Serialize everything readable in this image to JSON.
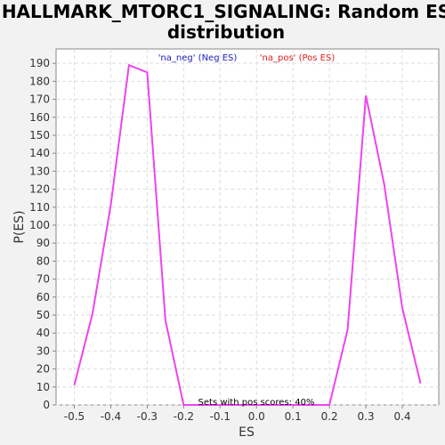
{
  "chart_data": {
    "type": "line",
    "title_line1": "HALLMARK_MTORC1_SIGNALING: Random ES",
    "title_line2": "distribution",
    "xlabel": "ES",
    "ylabel": "P(ES)",
    "xlim": [
      -0.55,
      0.5
    ],
    "ylim": [
      0,
      198
    ],
    "x_ticks": [
      -0.5,
      -0.4,
      -0.3,
      -0.2,
      -0.1,
      0.0,
      0.1,
      0.2,
      0.3,
      0.4
    ],
    "x_tick_labels": [
      "-0.5",
      "-0.4",
      "-0.3",
      "-0.2",
      "-0.1",
      "0.0",
      "0.1",
      "0.2",
      "0.3",
      "0.4"
    ],
    "y_ticks": [
      0,
      10,
      20,
      30,
      40,
      50,
      60,
      70,
      80,
      90,
      100,
      110,
      120,
      130,
      140,
      150,
      160,
      170,
      180,
      190
    ],
    "grid": true,
    "legend": [
      {
        "label": "'na_neg' (Neg ES)",
        "color": "#2020c0"
      },
      {
        "label": "'na_pos' (Pos ES)",
        "color": "#e02020"
      }
    ],
    "series": [
      {
        "color": "#ee44ee",
        "x": [
          -0.5,
          -0.45,
          -0.4,
          -0.35,
          -0.3,
          -0.25,
          -0.2,
          0.2,
          0.25,
          0.3,
          0.35,
          0.4,
          0.45
        ],
        "y": [
          11,
          51,
          111,
          189,
          185,
          47,
          0,
          0,
          42,
          172,
          123,
          54,
          12
        ]
      }
    ],
    "annotation": "Sets with pos scores: 40%"
  }
}
